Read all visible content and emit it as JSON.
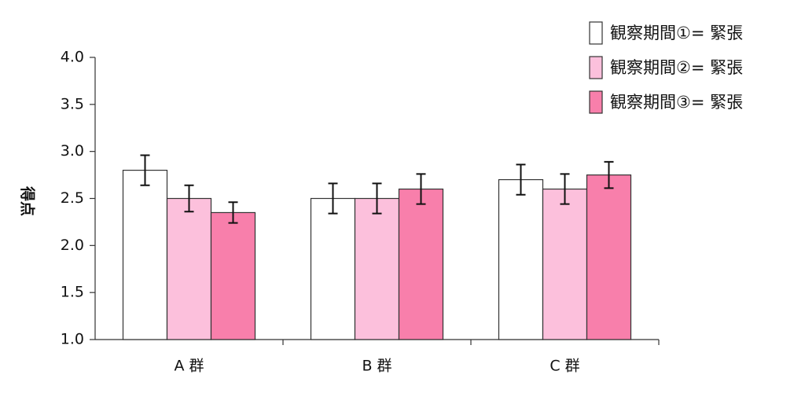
{
  "chart_data": {
    "type": "bar",
    "categories": [
      "A 群",
      "B 群",
      "C 群"
    ],
    "ylabel": "得点",
    "ylim": [
      1.0,
      4.0
    ],
    "yticks": [
      "1.0",
      "1.5",
      "2.0",
      "2.5",
      "3.0",
      "3.5",
      "4.0"
    ],
    "legend_position": "top-right",
    "error_bars": true,
    "series": [
      {
        "name": "観察期間①= 緊張",
        "color": "#ffffff",
        "values": [
          2.8,
          2.5,
          2.7
        ],
        "errors": [
          0.16,
          0.16,
          0.16
        ]
      },
      {
        "name": "観察期間②= 緊張",
        "color": "#fcc0dc",
        "values": [
          2.5,
          2.5,
          2.6
        ],
        "errors": [
          0.14,
          0.16,
          0.16
        ]
      },
      {
        "name": "観察期間③= 緊張",
        "color": "#f87fab",
        "values": [
          2.35,
          2.6,
          2.75
        ],
        "errors": [
          0.11,
          0.16,
          0.14
        ]
      }
    ]
  }
}
